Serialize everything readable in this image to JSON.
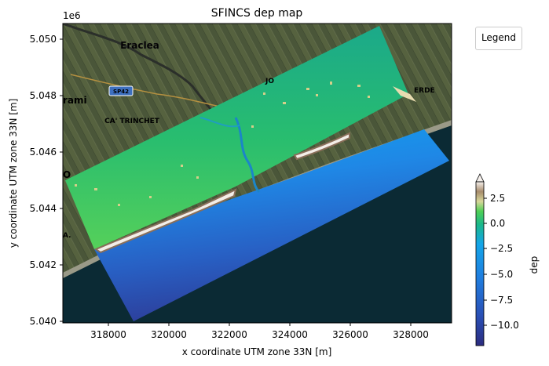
{
  "title": "SFINCS dep map",
  "xlabel": "x coordinate UTM zone 33N [m]",
  "ylabel": "y coordinate UTM zone 33N [m]",
  "y_offset_label": "1e6",
  "x_ticks": [
    "318000",
    "320000",
    "322000",
    "324000",
    "326000",
    "328000"
  ],
  "y_ticks": [
    "5.040",
    "5.042",
    "5.044",
    "5.046",
    "5.048",
    "5.050"
  ],
  "legend_title": "Legend",
  "colorbar": {
    "label": "dep",
    "ticks": [
      "2.5",
      "0.0",
      "−2.5",
      "−5.0",
      "−7.5",
      "−10.0"
    ],
    "range": [
      -12,
      4
    ]
  },
  "map_labels": {
    "town1": "Eraclea",
    "road_shield": "SP42",
    "town2": "CA' TRINCHET",
    "left_edge": "rami",
    "right_edge": "ERDE",
    "partial1": "JO",
    "partial2": "O",
    "partial3": "A."
  },
  "colors": {
    "sea": "#0a2a35",
    "land_dark": "#3e4a32",
    "land_light": "#6e7a58",
    "dep_deep": "#2b3a8f",
    "dep_mid": "#1f7fe0",
    "dep_zero": "#1bb88a",
    "dep_shallow": "#4fcf56",
    "dep_high": "#f2e8c8"
  },
  "chart_data": {
    "type": "heatmap",
    "title": "SFINCS dep map",
    "xlabel": "x coordinate UTM zone 33N [m]",
    "ylabel": "y coordinate UTM zone 33N [m]",
    "xlim": [
      316100,
      329900
    ],
    "ylim": [
      5039900,
      5050500
    ],
    "colorbar_label": "dep",
    "color_range": [
      -12,
      4
    ],
    "grid": false,
    "legend": "top-right"
  }
}
